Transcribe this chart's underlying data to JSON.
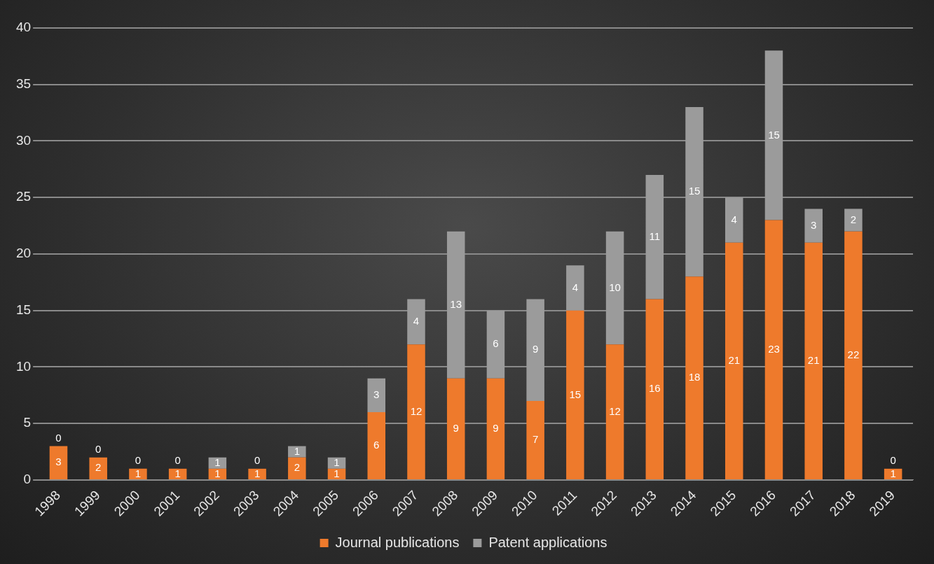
{
  "chart_data": {
    "type": "bar",
    "stacked": true,
    "categories": [
      "1998",
      "1999",
      "2000",
      "2001",
      "2002",
      "2003",
      "2004",
      "2005",
      "2006",
      "2007",
      "2008",
      "2009",
      "2010",
      "2011",
      "2012",
      "2013",
      "2014",
      "2015",
      "2016",
      "2017",
      "2018",
      "2019"
    ],
    "series": [
      {
        "name": "Journal publications",
        "color": "#ee7a2c",
        "values": [
          3,
          2,
          1,
          1,
          1,
          1,
          2,
          1,
          6,
          12,
          9,
          9,
          7,
          15,
          12,
          16,
          18,
          21,
          23,
          21,
          22,
          1
        ]
      },
      {
        "name": "Patent applications",
        "color": "#9b9b9b",
        "values": [
          0,
          0,
          0,
          0,
          1,
          0,
          1,
          1,
          3,
          4,
          13,
          6,
          9,
          4,
          10,
          11,
          15,
          4,
          15,
          3,
          2,
          0
        ]
      }
    ],
    "ylim": [
      0,
      40
    ],
    "yticks": [
      0,
      5,
      10,
      15,
      20,
      25,
      30,
      35,
      40
    ],
    "grid": "y",
    "legend": "bottom",
    "data_labels": true
  }
}
